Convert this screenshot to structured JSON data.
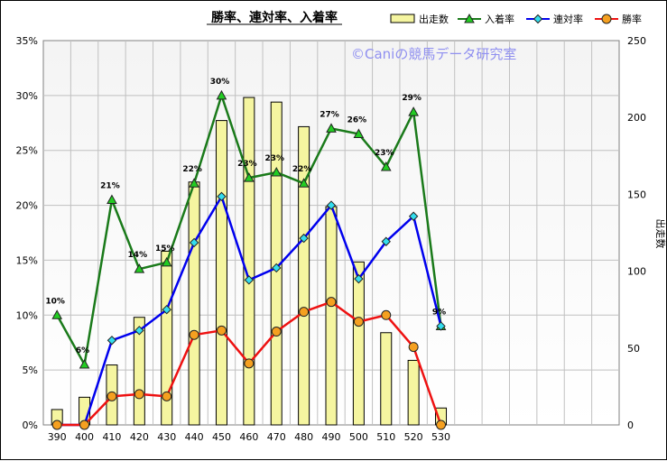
{
  "chart_data": {
    "type": "bar+line",
    "title": "勝率、連対率、入着率",
    "watermark": "©Caniの競馬データ研究室",
    "y2label": "出走数",
    "categories": [
      "390",
      "400",
      "410",
      "420",
      "430",
      "440",
      "450",
      "460",
      "470",
      "480",
      "490",
      "500",
      "510",
      "520",
      "530"
    ],
    "y_left": {
      "min": 0,
      "max": 35,
      "step": 5,
      "unit": "%"
    },
    "y_right": {
      "min": 0,
      "max": 250,
      "step": 50
    },
    "bars": {
      "name": "出走数",
      "values": [
        10,
        18,
        39,
        70,
        113,
        158,
        198,
        213,
        210,
        194,
        142,
        106,
        60,
        42,
        11
      ],
      "fill": "#f5f5a0",
      "stroke": "#000000"
    },
    "series": [
      {
        "name": "入着率",
        "color": "#1a7a1a",
        "marker": "triangle",
        "marker_fill": "#22cc22",
        "values": [
          10,
          5.5,
          20.5,
          14.2,
          14.8,
          22,
          30,
          22.5,
          23,
          22,
          27,
          26.5,
          23.5,
          28.5,
          9
        ],
        "labels": [
          "10%",
          "6%",
          "21%",
          "14%",
          "15%",
          "22%",
          "30%",
          "23%",
          "23%",
          "22%",
          "27%",
          "26%",
          "23%",
          "29%",
          "9%"
        ]
      },
      {
        "name": "連対率",
        "color": "#0000ee",
        "marker": "diamond",
        "marker_fill": "#33ddee",
        "values": [
          0,
          0,
          7.7,
          8.6,
          10.5,
          16.6,
          20.8,
          13.2,
          14.3,
          17,
          20,
          13.3,
          16.7,
          19,
          9
        ]
      },
      {
        "name": "勝率",
        "color": "#ee1111",
        "marker": "circle",
        "marker_fill": "#f5a020",
        "values": [
          0,
          0,
          2.6,
          2.8,
          2.6,
          8.2,
          8.6,
          5.6,
          8.5,
          10.3,
          11.2,
          9.4,
          10,
          7.1,
          0
        ]
      }
    ],
    "x_extra_slots": 6,
    "grid": true,
    "legend_position": "top-right",
    "label_series": "入着率"
  }
}
